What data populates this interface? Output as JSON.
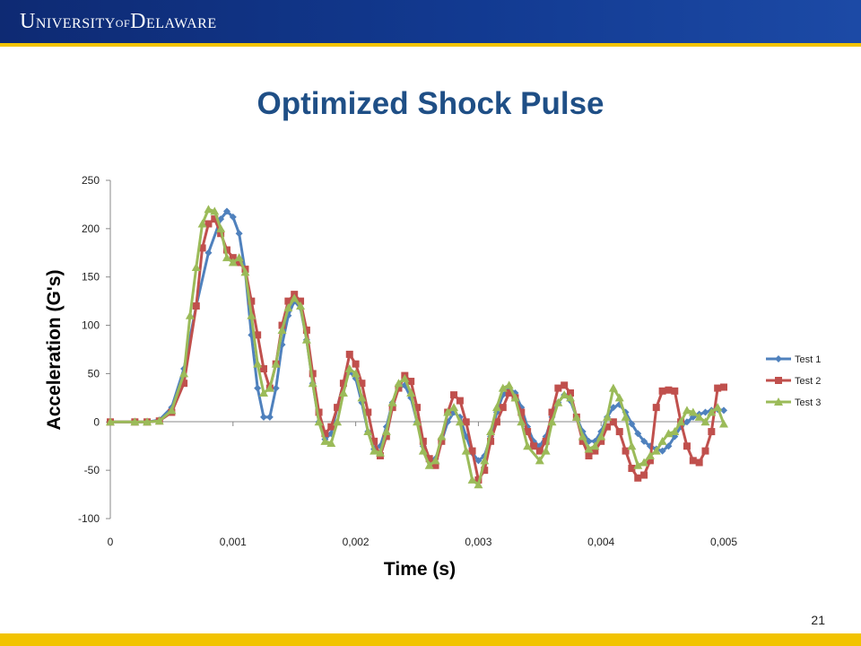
{
  "header": {
    "logo_parts": [
      "U",
      "NIVERSITY",
      "OF",
      "D",
      "ELAWARE"
    ]
  },
  "slide": {
    "title": "Optimized Shock Pulse",
    "page_number": "21"
  },
  "colors": {
    "header_blue": "#123a91",
    "gold": "#f2c300",
    "title_blue": "#1f4f86",
    "test1": "#4f81bd",
    "test2": "#c0504d",
    "test3": "#9bbb59"
  },
  "chart_data": {
    "type": "line",
    "xlabel": "Time (s)",
    "ylabel": "Acceleration (G's)",
    "xlim": [
      0,
      0.005
    ],
    "ylim": [
      -100,
      250
    ],
    "x_ticks": [
      "0",
      "0,001",
      "0,002",
      "0,003",
      "0,004",
      "0,005"
    ],
    "y_ticks": [
      "250",
      "200",
      "150",
      "100",
      "50",
      "0",
      "-50",
      "-100"
    ],
    "grid": false,
    "legend_position": "right",
    "series": [
      {
        "name": "Test 1",
        "color": "#4f81bd",
        "marker": "diamond",
        "points": [
          [
            0.0,
            0
          ],
          [
            0.0002,
            0
          ],
          [
            0.0003,
            0
          ],
          [
            0.0004,
            2
          ],
          [
            0.0005,
            15
          ],
          [
            0.0006,
            55
          ],
          [
            0.0007,
            120
          ],
          [
            0.0008,
            175
          ],
          [
            0.0009,
            210
          ],
          [
            0.00095,
            218
          ],
          [
            0.001,
            212
          ],
          [
            0.00105,
            195
          ],
          [
            0.0011,
            155
          ],
          [
            0.00115,
            90
          ],
          [
            0.0012,
            35
          ],
          [
            0.00125,
            5
          ],
          [
            0.0013,
            5
          ],
          [
            0.00135,
            35
          ],
          [
            0.0014,
            80
          ],
          [
            0.00145,
            110
          ],
          [
            0.0015,
            125
          ],
          [
            0.00155,
            118
          ],
          [
            0.0016,
            85
          ],
          [
            0.00165,
            40
          ],
          [
            0.0017,
            0
          ],
          [
            0.00175,
            -18
          ],
          [
            0.0018,
            -12
          ],
          [
            0.00185,
            15
          ],
          [
            0.0019,
            40
          ],
          [
            0.00195,
            52
          ],
          [
            0.002,
            45
          ],
          [
            0.00205,
            20
          ],
          [
            0.0021,
            -10
          ],
          [
            0.00215,
            -28
          ],
          [
            0.0022,
            -25
          ],
          [
            0.00225,
            -5
          ],
          [
            0.0023,
            20
          ],
          [
            0.00235,
            35
          ],
          [
            0.0024,
            38
          ],
          [
            0.00245,
            25
          ],
          [
            0.0025,
            0
          ],
          [
            0.00255,
            -25
          ],
          [
            0.0026,
            -40
          ],
          [
            0.00265,
            -38
          ],
          [
            0.0027,
            -20
          ],
          [
            0.00275,
            0
          ],
          [
            0.0028,
            10
          ],
          [
            0.00285,
            5
          ],
          [
            0.0029,
            -15
          ],
          [
            0.00295,
            -32
          ],
          [
            0.003,
            -40
          ],
          [
            0.00305,
            -35
          ],
          [
            0.0031,
            -15
          ],
          [
            0.00315,
            10
          ],
          [
            0.0032,
            28
          ],
          [
            0.00325,
            35
          ],
          [
            0.0033,
            30
          ],
          [
            0.00335,
            15
          ],
          [
            0.0034,
            -5
          ],
          [
            0.00345,
            -20
          ],
          [
            0.0035,
            -25
          ],
          [
            0.00355,
            -15
          ],
          [
            0.0036,
            5
          ],
          [
            0.00365,
            20
          ],
          [
            0.0037,
            28
          ],
          [
            0.00375,
            22
          ],
          [
            0.0038,
            5
          ],
          [
            0.00385,
            -10
          ],
          [
            0.0039,
            -20
          ],
          [
            0.00395,
            -20
          ],
          [
            0.004,
            -10
          ],
          [
            0.00405,
            5
          ],
          [
            0.0041,
            15
          ],
          [
            0.00415,
            18
          ],
          [
            0.0042,
            10
          ],
          [
            0.00425,
            -2
          ],
          [
            0.0043,
            -12
          ],
          [
            0.00435,
            -20
          ],
          [
            0.0044,
            -25
          ],
          [
            0.00445,
            -28
          ],
          [
            0.0045,
            -30
          ],
          [
            0.00455,
            -25
          ],
          [
            0.0046,
            -15
          ],
          [
            0.00465,
            -5
          ],
          [
            0.0047,
            0
          ],
          [
            0.00475,
            5
          ],
          [
            0.0048,
            8
          ],
          [
            0.00485,
            10
          ],
          [
            0.0049,
            12
          ],
          [
            0.00495,
            13
          ],
          [
            0.005,
            12
          ]
        ]
      },
      {
        "name": "Test 2",
        "color": "#c0504d",
        "marker": "square",
        "points": [
          [
            0.0,
            0
          ],
          [
            0.0002,
            0
          ],
          [
            0.0003,
            0
          ],
          [
            0.0004,
            1
          ],
          [
            0.0005,
            10
          ],
          [
            0.0006,
            40
          ],
          [
            0.0007,
            120
          ],
          [
            0.00075,
            180
          ],
          [
            0.0008,
            205
          ],
          [
            0.00085,
            210
          ],
          [
            0.0009,
            195
          ],
          [
            0.00095,
            178
          ],
          [
            0.001,
            170
          ],
          [
            0.00105,
            165
          ],
          [
            0.0011,
            158
          ],
          [
            0.00115,
            125
          ],
          [
            0.0012,
            90
          ],
          [
            0.00125,
            55
          ],
          [
            0.0013,
            35
          ],
          [
            0.00135,
            60
          ],
          [
            0.0014,
            100
          ],
          [
            0.00145,
            125
          ],
          [
            0.0015,
            132
          ],
          [
            0.00155,
            125
          ],
          [
            0.0016,
            95
          ],
          [
            0.00165,
            50
          ],
          [
            0.0017,
            10
          ],
          [
            0.00175,
            -12
          ],
          [
            0.0018,
            -5
          ],
          [
            0.00185,
            15
          ],
          [
            0.0019,
            40
          ],
          [
            0.00195,
            70
          ],
          [
            0.002,
            60
          ],
          [
            0.00205,
            40
          ],
          [
            0.0021,
            10
          ],
          [
            0.00215,
            -20
          ],
          [
            0.0022,
            -35
          ],
          [
            0.00225,
            -15
          ],
          [
            0.0023,
            15
          ],
          [
            0.00235,
            35
          ],
          [
            0.0024,
            48
          ],
          [
            0.00245,
            42
          ],
          [
            0.0025,
            15
          ],
          [
            0.00255,
            -20
          ],
          [
            0.0026,
            -38
          ],
          [
            0.00265,
            -45
          ],
          [
            0.0027,
            -20
          ],
          [
            0.00275,
            10
          ],
          [
            0.0028,
            28
          ],
          [
            0.00285,
            22
          ],
          [
            0.0029,
            0
          ],
          [
            0.00295,
            -30
          ],
          [
            0.003,
            -60
          ],
          [
            0.00305,
            -50
          ],
          [
            0.0031,
            -20
          ],
          [
            0.00315,
            0
          ],
          [
            0.0032,
            15
          ],
          [
            0.00325,
            30
          ],
          [
            0.0033,
            25
          ],
          [
            0.00335,
            10
          ],
          [
            0.0034,
            -10
          ],
          [
            0.00345,
            -25
          ],
          [
            0.0035,
            -30
          ],
          [
            0.00355,
            -20
          ],
          [
            0.0036,
            10
          ],
          [
            0.00365,
            35
          ],
          [
            0.0037,
            38
          ],
          [
            0.00375,
            30
          ],
          [
            0.0038,
            5
          ],
          [
            0.00385,
            -20
          ],
          [
            0.0039,
            -35
          ],
          [
            0.00395,
            -30
          ],
          [
            0.004,
            -20
          ],
          [
            0.00405,
            -5
          ],
          [
            0.0041,
            0
          ],
          [
            0.00415,
            -10
          ],
          [
            0.0042,
            -30
          ],
          [
            0.00425,
            -48
          ],
          [
            0.0043,
            -58
          ],
          [
            0.00435,
            -55
          ],
          [
            0.0044,
            -40
          ],
          [
            0.00445,
            15
          ],
          [
            0.0045,
            32
          ],
          [
            0.00455,
            33
          ],
          [
            0.0046,
            32
          ],
          [
            0.00465,
            0
          ],
          [
            0.0047,
            -25
          ],
          [
            0.00475,
            -40
          ],
          [
            0.0048,
            -42
          ],
          [
            0.00485,
            -30
          ],
          [
            0.0049,
            -10
          ],
          [
            0.00495,
            35
          ],
          [
            0.005,
            36
          ]
        ]
      },
      {
        "name": "Test 3",
        "color": "#9bbb59",
        "marker": "triangle",
        "points": [
          [
            0.0,
            0
          ],
          [
            0.0002,
            0
          ],
          [
            0.0003,
            0
          ],
          [
            0.0004,
            1
          ],
          [
            0.0005,
            12
          ],
          [
            0.0006,
            50
          ],
          [
            0.00065,
            110
          ],
          [
            0.0007,
            160
          ],
          [
            0.00075,
            205
          ],
          [
            0.0008,
            220
          ],
          [
            0.00085,
            218
          ],
          [
            0.0009,
            200
          ],
          [
            0.00095,
            170
          ],
          [
            0.001,
            165
          ],
          [
            0.00105,
            170
          ],
          [
            0.0011,
            155
          ],
          [
            0.00115,
            110
          ],
          [
            0.0012,
            60
          ],
          [
            0.00125,
            30
          ],
          [
            0.0013,
            35
          ],
          [
            0.00135,
            60
          ],
          [
            0.0014,
            95
          ],
          [
            0.00145,
            118
          ],
          [
            0.0015,
            128
          ],
          [
            0.00155,
            120
          ],
          [
            0.0016,
            85
          ],
          [
            0.00165,
            40
          ],
          [
            0.0017,
            0
          ],
          [
            0.00175,
            -20
          ],
          [
            0.0018,
            -22
          ],
          [
            0.00185,
            0
          ],
          [
            0.0019,
            30
          ],
          [
            0.00195,
            55
          ],
          [
            0.002,
            50
          ],
          [
            0.00205,
            25
          ],
          [
            0.0021,
            -10
          ],
          [
            0.00215,
            -30
          ],
          [
            0.0022,
            -32
          ],
          [
            0.00225,
            -10
          ],
          [
            0.0023,
            20
          ],
          [
            0.00235,
            40
          ],
          [
            0.0024,
            45
          ],
          [
            0.00245,
            30
          ],
          [
            0.0025,
            0
          ],
          [
            0.00255,
            -30
          ],
          [
            0.0026,
            -45
          ],
          [
            0.00265,
            -40
          ],
          [
            0.0027,
            -15
          ],
          [
            0.00275,
            10
          ],
          [
            0.0028,
            15
          ],
          [
            0.00285,
            0
          ],
          [
            0.0029,
            -30
          ],
          [
            0.00295,
            -60
          ],
          [
            0.003,
            -65
          ],
          [
            0.00305,
            -40
          ],
          [
            0.0031,
            -10
          ],
          [
            0.00315,
            15
          ],
          [
            0.0032,
            35
          ],
          [
            0.00325,
            38
          ],
          [
            0.0033,
            25
          ],
          [
            0.00335,
            0
          ],
          [
            0.0034,
            -25
          ],
          [
            0.0035,
            -40
          ],
          [
            0.00355,
            -30
          ],
          [
            0.0036,
            0
          ],
          [
            0.00365,
            20
          ],
          [
            0.0037,
            28
          ],
          [
            0.00375,
            25
          ],
          [
            0.0038,
            5
          ],
          [
            0.00385,
            -15
          ],
          [
            0.0039,
            -28
          ],
          [
            0.00395,
            -25
          ],
          [
            0.004,
            -15
          ],
          [
            0.00405,
            5
          ],
          [
            0.0041,
            35
          ],
          [
            0.00415,
            25
          ],
          [
            0.0042,
            5
          ],
          [
            0.00425,
            -25
          ],
          [
            0.0043,
            -45
          ],
          [
            0.00435,
            -42
          ],
          [
            0.0044,
            -35
          ],
          [
            0.00445,
            -30
          ],
          [
            0.0045,
            -20
          ],
          [
            0.00455,
            -12
          ],
          [
            0.0046,
            -10
          ],
          [
            0.00465,
            0
          ],
          [
            0.0047,
            12
          ],
          [
            0.00475,
            10
          ],
          [
            0.0048,
            5
          ],
          [
            0.00485,
            0
          ],
          [
            0.0049,
            10
          ],
          [
            0.00495,
            15
          ],
          [
            0.005,
            -2
          ]
        ]
      }
    ]
  }
}
